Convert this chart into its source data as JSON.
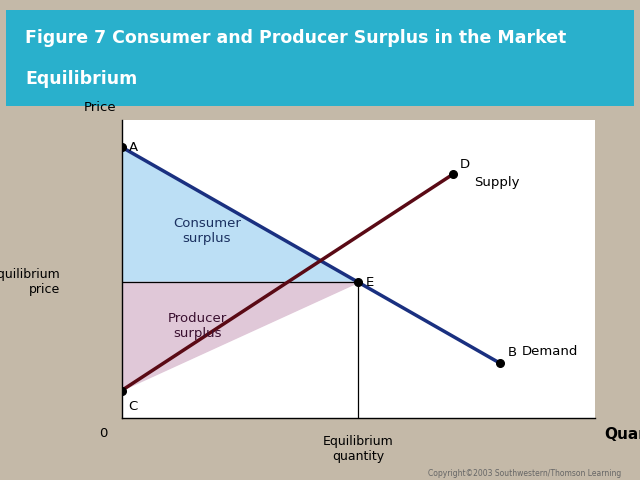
{
  "title_line1": "Figure 7 Consumer and Producer Surplus in the Market",
  "title_line2": "Equilibrium",
  "title_bg_color": "#29b0cc",
  "title_text_color": "white",
  "bg_color": "#c4b9a8",
  "plot_bg_color": "white",
  "xlabel": "Quantity",
  "ylabel": "Price",
  "x_eq_label": "Equilibrium\nquantity",
  "y_eq_label": "Equilibrium\nprice",
  "consumer_surplus_color": "#bcdff5",
  "producer_surplus_color": "#e0c8d8",
  "demand_line_color": "#1a3080",
  "supply_line_color": "#5a0a15",
  "copyright_text": "Copyright©2003 Southwestern/Thomson Learning",
  "A": [
    0,
    10
  ],
  "B": [
    8,
    2
  ],
  "C": [
    0,
    1
  ],
  "D": [
    7,
    9
  ],
  "E": [
    5,
    5
  ],
  "xlim": [
    0,
    10
  ],
  "ylim": [
    0,
    11
  ],
  "eq_x": 5,
  "eq_y": 5
}
